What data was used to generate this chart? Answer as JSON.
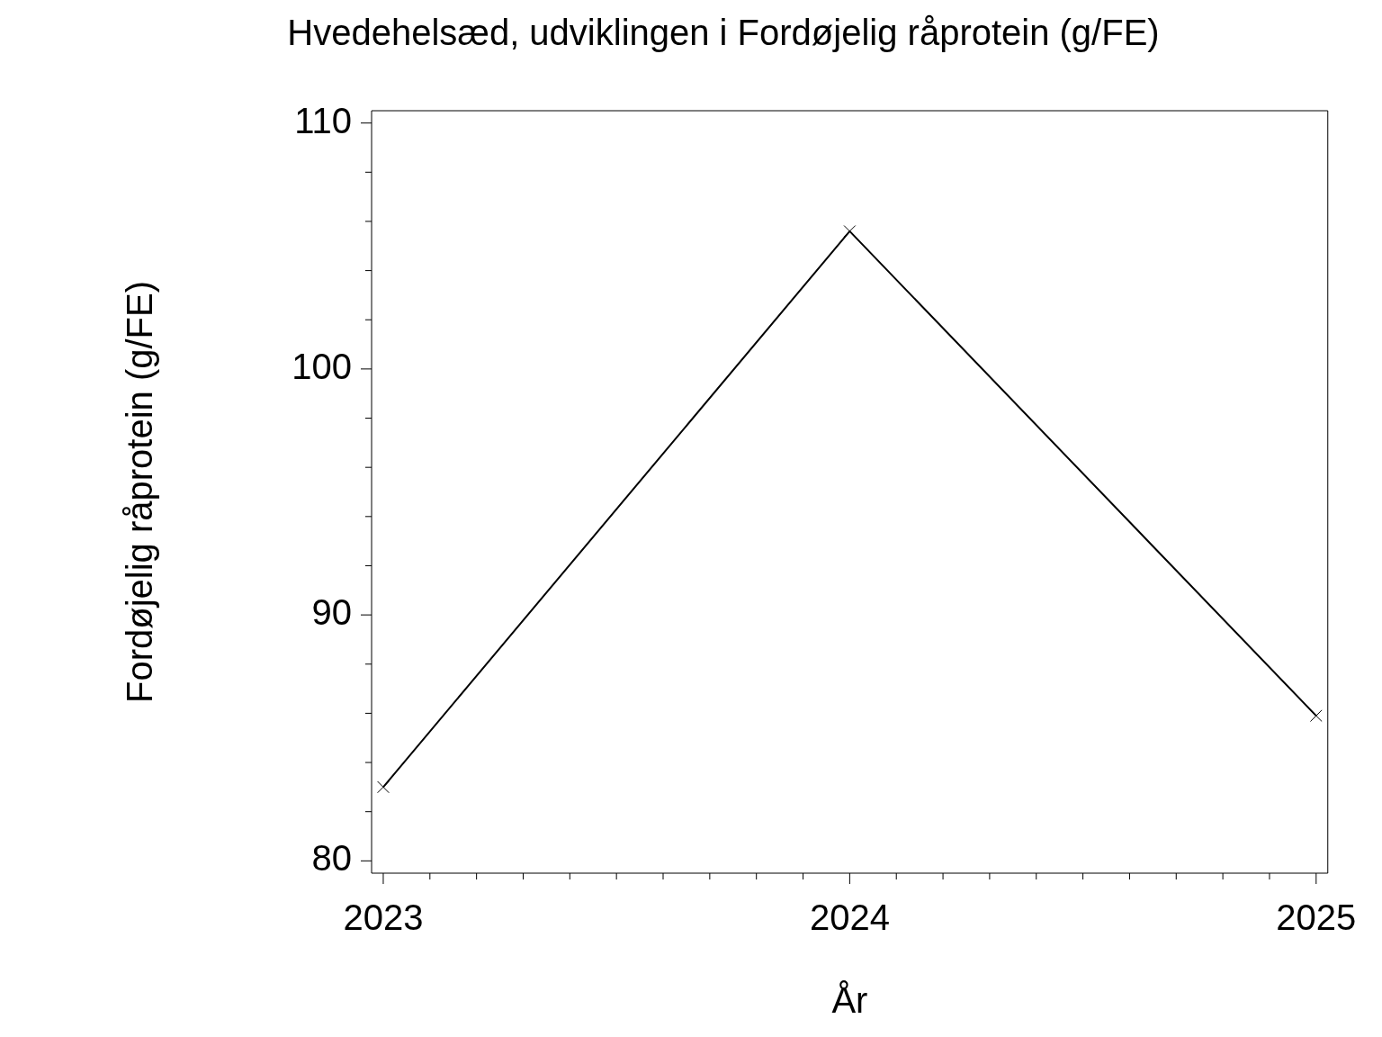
{
  "chart_data": {
    "type": "line",
    "title": "Hvedehelsæd, udviklingen i Fordøjelig råprotein (g/FE)",
    "xlabel": "År",
    "ylabel": "Fordøjelig råprotein (g/FE)",
    "x": [
      2023,
      2024,
      2025
    ],
    "series": [
      {
        "color": "#000000",
        "values": [
          83.0,
          105.6,
          85.9
        ]
      }
    ],
    "marker": "cross",
    "line_style": "solid",
    "legend": false,
    "xlim": [
      2022.975,
      2025.025
    ],
    "xticks": [
      2023,
      {
        "value": 2023.1,
        "label": null
      },
      {
        "value": 2023.2,
        "label": null
      },
      {
        "value": 2023.3,
        "label": null
      },
      {
        "value": 2023.4,
        "label": null
      },
      {
        "value": 2023.5,
        "label": null
      },
      {
        "value": 2023.6,
        "label": null
      },
      {
        "value": 2023.7,
        "label": null
      },
      {
        "value": 2023.8,
        "label": null
      },
      {
        "value": 2023.9,
        "label": null
      },
      2024,
      {
        "value": 2024.1,
        "label": null
      },
      {
        "value": 2024.2,
        "label": null
      },
      {
        "value": 2024.3,
        "label": null
      },
      {
        "value": 2024.4,
        "label": null
      },
      {
        "value": 2024.5,
        "label": null
      },
      {
        "value": 2024.6,
        "label": null
      },
      {
        "value": 2024.7,
        "label": null
      },
      {
        "value": 2024.8,
        "label": null
      },
      {
        "value": 2024.9,
        "label": null
      },
      2025
    ],
    "ylim": [
      79.5,
      110.5
    ],
    "yticks": [
      80,
      {
        "value": 82,
        "label": null
      },
      {
        "value": 84,
        "label": null
      },
      {
        "value": 86,
        "label": null
      },
      {
        "value": 88,
        "label": null
      },
      90,
      {
        "value": 92,
        "label": null
      },
      {
        "value": 94,
        "label": null
      },
      {
        "value": 96,
        "label": null
      },
      {
        "value": 98,
        "label": null
      },
      100,
      {
        "value": 102,
        "label": null
      },
      {
        "value": 104,
        "label": null
      },
      {
        "value": 106,
        "label": null
      },
      {
        "value": 108,
        "label": null
      },
      110
    ]
  }
}
